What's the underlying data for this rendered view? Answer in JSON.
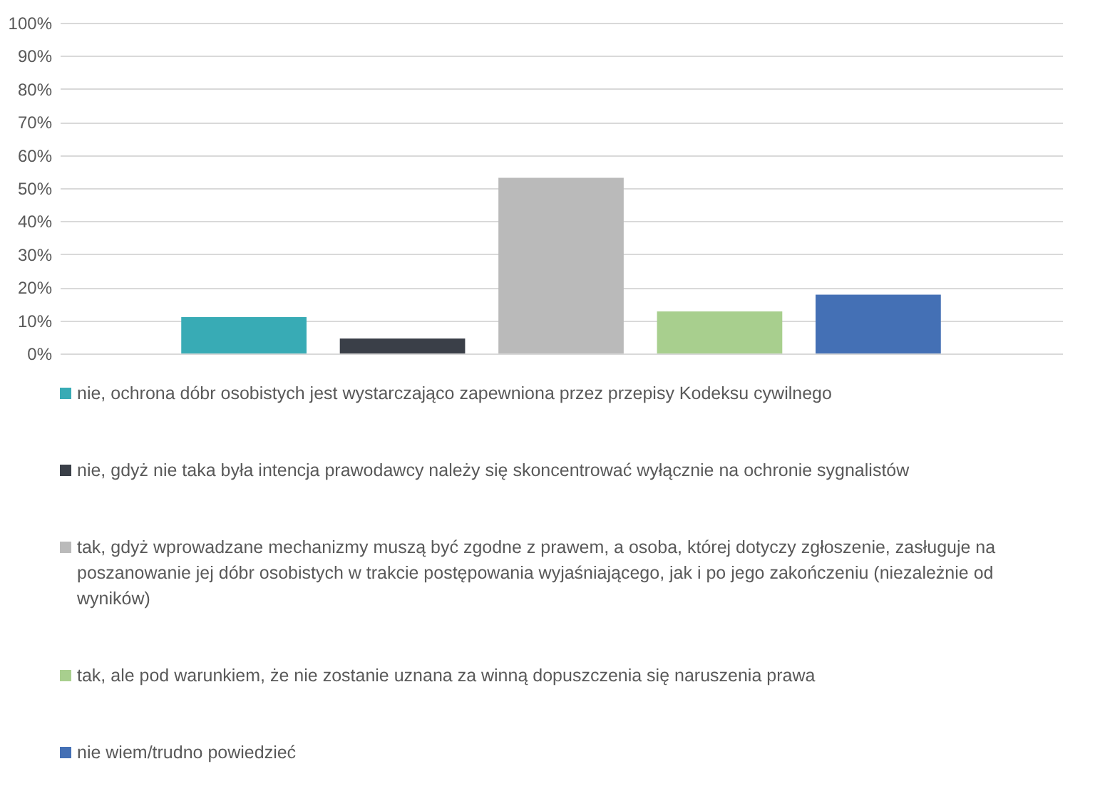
{
  "chart_data": {
    "type": "bar",
    "categories": [
      null
    ],
    "series": [
      {
        "name": "nie, ochrona dóbr osobistych jest wystarczająco zapewniona przez przepisy Kodeksu cywilnego",
        "color": "#38abb5",
        "values": [
          11.0
        ]
      },
      {
        "name": "nie, gdyż nie taka była intencja prawodawcy  należy się skoncentrować wyłącznie na ochronie sygnalistów",
        "color": "#3a3f48",
        "values": [
          4.5
        ]
      },
      {
        "name": "tak, gdyż wprowadzane mechanizmy muszą być zgodne z prawem, a osoba, której dotyczy zgłoszenie, zasługuje na poszanowanie jej dóbr osobistych w trakcie postępowania wyjaśniającego, jak i po jego zakończeniu (niezależnie od wyników)",
        "color": "#bababa",
        "values": [
          53.1
        ]
      },
      {
        "name": "tak, ale pod warunkiem, że nie zostanie uznana za winną dopuszczenia się naruszenia prawa",
        "color": "#a8cf8e",
        "values": [
          12.7
        ]
      },
      {
        "name": "nie wiem/trudno powiedzieć",
        "color": "#4470b5",
        "values": [
          17.8
        ]
      }
    ],
    "ylim": [
      0,
      100
    ],
    "yticks": [
      {
        "value": 0,
        "label": "0%"
      },
      {
        "value": 10,
        "label": "10%"
      },
      {
        "value": 20,
        "label": "20%"
      },
      {
        "value": 30,
        "label": "30%"
      },
      {
        "value": 40,
        "label": "40%"
      },
      {
        "value": 50,
        "label": "50%"
      },
      {
        "value": 60,
        "label": "60%"
      },
      {
        "value": 70,
        "label": "70%"
      },
      {
        "value": 80,
        "label": "80%"
      },
      {
        "value": 90,
        "label": "90%"
      },
      {
        "value": 100,
        "label": "100%"
      }
    ],
    "grid": "y",
    "legend": "bottom"
  }
}
